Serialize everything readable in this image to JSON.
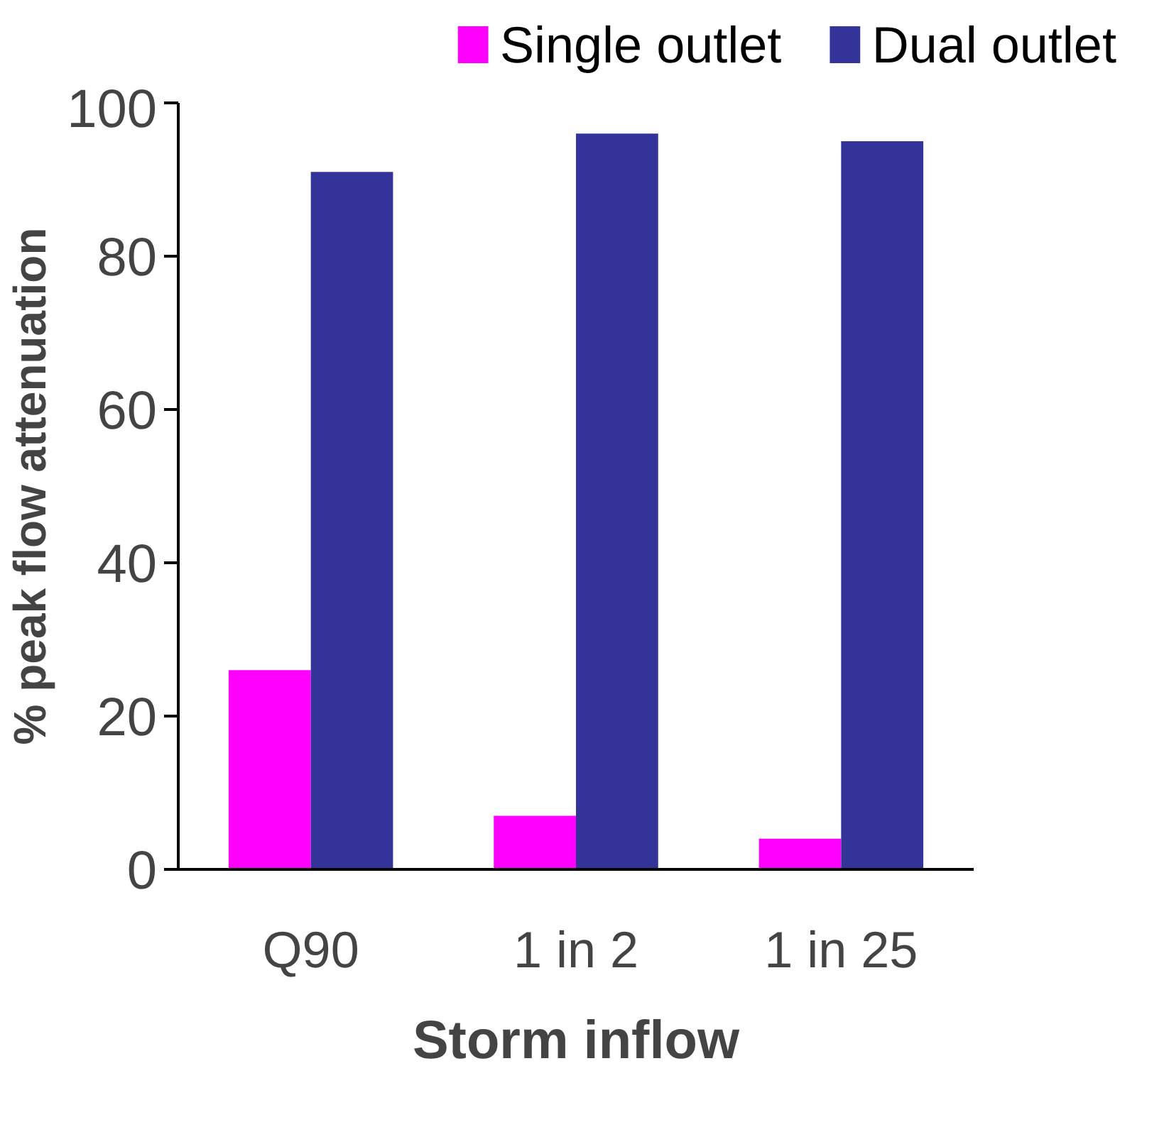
{
  "chart_data": {
    "type": "bar",
    "xlabel": "Storm inflow",
    "ylabel": "% peak flow attenuation",
    "categories": [
      "Q90",
      "1 in 2",
      "1 in 25"
    ],
    "series": [
      {
        "name": "Single outlet",
        "color": "#ff00ff",
        "values": [
          26,
          7,
          4
        ]
      },
      {
        "name": "Dual outlet",
        "color": "#333399",
        "values": [
          91,
          96,
          95
        ]
      }
    ],
    "ylim": [
      0,
      100
    ],
    "yticks": [
      0,
      20,
      40,
      60,
      80,
      100
    ],
    "grid": false,
    "legend": "top"
  }
}
